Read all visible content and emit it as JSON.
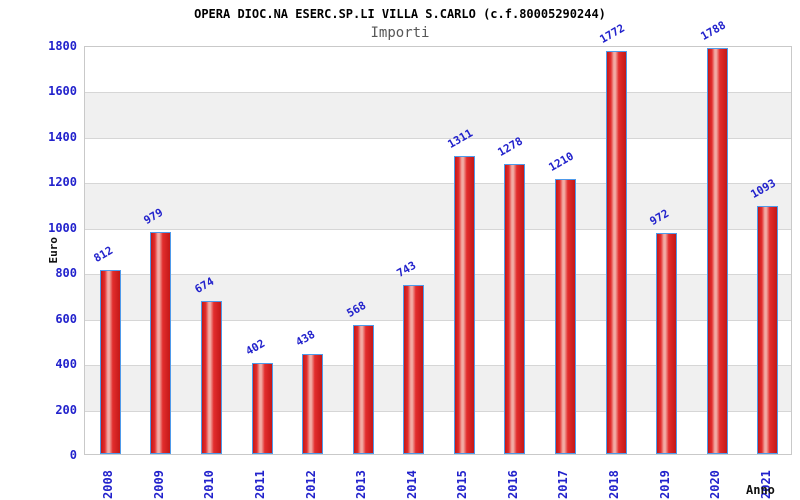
{
  "header": {
    "title": "OPERA DIOC.NA ESERC.SP.LI VILLA S.CARLO (c.f.80005290244)",
    "subtitle": "Importi"
  },
  "chart_data": {
    "type": "bar",
    "title": "OPERA DIOC.NA ESERC.SP.LI VILLA S.CARLO (c.f.80005290244)",
    "subtitle": "Importi",
    "xlabel": "Anno",
    "ylabel": "Euro",
    "categories": [
      "2008",
      "2009",
      "2010",
      "2011",
      "2012",
      "2013",
      "2014",
      "2015",
      "2016",
      "2017",
      "2018",
      "2019",
      "2020",
      "2021"
    ],
    "values": [
      812,
      979,
      674,
      402,
      438,
      568,
      743,
      1311,
      1278,
      1210,
      1772,
      972,
      1788,
      1093
    ],
    "ylim": [
      0,
      1800
    ],
    "yticks": [
      0,
      200,
      400,
      600,
      800,
      1000,
      1200,
      1400,
      1600,
      1800
    ],
    "grid": "horizontal gridlines with alternating gray/white bands every 200",
    "legend_position": "none",
    "bar_value_labels_rotation_deg": -30,
    "x_tick_rotation_deg": -90
  },
  "colors": {
    "label_blue": "#2222cc",
    "bar_red": "#e22d2d",
    "bar_red_dark": "#c41818",
    "bar_highlight": "#f2aba4",
    "bar_border": "#4e9aea",
    "band_gray": "#f0f0f0",
    "grid_line": "#d6d6d6",
    "title_black": "#000000",
    "subtitle_gray": "#575757"
  }
}
